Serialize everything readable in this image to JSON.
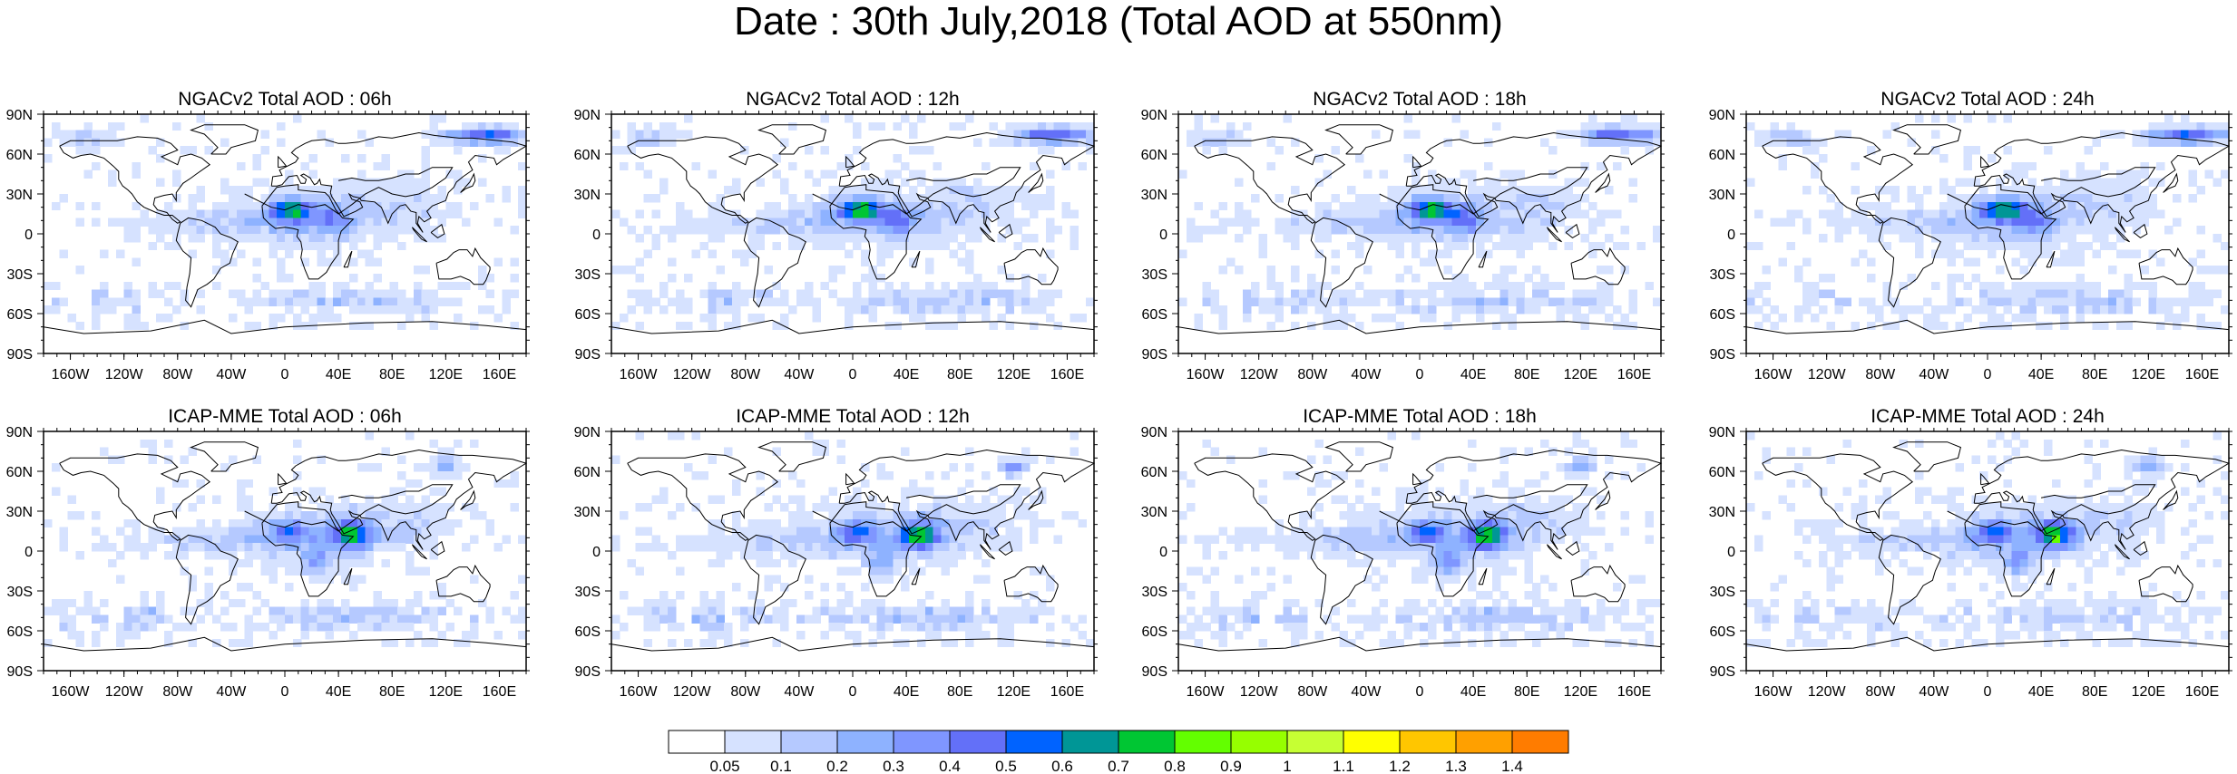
{
  "title": "Date : 30th July,2018 (Total AOD at 550nm)",
  "panels": [
    {
      "title": "NGACv2 Total AOD : 06h",
      "model": "NGACv2",
      "lead": "06h"
    },
    {
      "title": "NGACv2 Total AOD : 12h",
      "model": "NGACv2",
      "lead": "12h"
    },
    {
      "title": "NGACv2 Total AOD : 18h",
      "model": "NGACv2",
      "lead": "18h"
    },
    {
      "title": "NGACv2 Total AOD : 24h",
      "model": "NGACv2",
      "lead": "24h"
    },
    {
      "title": "ICAP-MME Total AOD : 06h",
      "model": "ICAP-MME",
      "lead": "06h"
    },
    {
      "title": "ICAP-MME Total AOD : 12h",
      "model": "ICAP-MME",
      "lead": "12h"
    },
    {
      "title": "ICAP-MME Total AOD : 18h",
      "model": "ICAP-MME",
      "lead": "18h"
    },
    {
      "title": "ICAP-MME Total AOD : 24h",
      "model": "ICAP-MME",
      "lead": "24h"
    }
  ],
  "lat_labels": [
    "90N",
    "60N",
    "30N",
    "0",
    "30S",
    "60S",
    "90S"
  ],
  "lon_labels": [
    "160W",
    "120W",
    "80W",
    "40W",
    "0",
    "40E",
    "80E",
    "120E",
    "160E"
  ],
  "colorbar": {
    "labels": [
      "0.05",
      "0.1",
      "0.2",
      "0.3",
      "0.4",
      "0.5",
      "0.6",
      "0.7",
      "0.8",
      "0.9",
      "1",
      "1.1",
      "1.2",
      "1.3",
      "1.4"
    ],
    "colors": [
      "#ffffff",
      "#d6e2ff",
      "#b5c9ff",
      "#8eb2ff",
      "#7f96ff",
      "#6370f8",
      "#0063ff",
      "#009696",
      "#00c633",
      "#63ff00",
      "#96ff00",
      "#c6ff33",
      "#ffff00",
      "#ffc600",
      "#ffa000",
      "#ff7c00",
      "#ff1900"
    ]
  }
}
